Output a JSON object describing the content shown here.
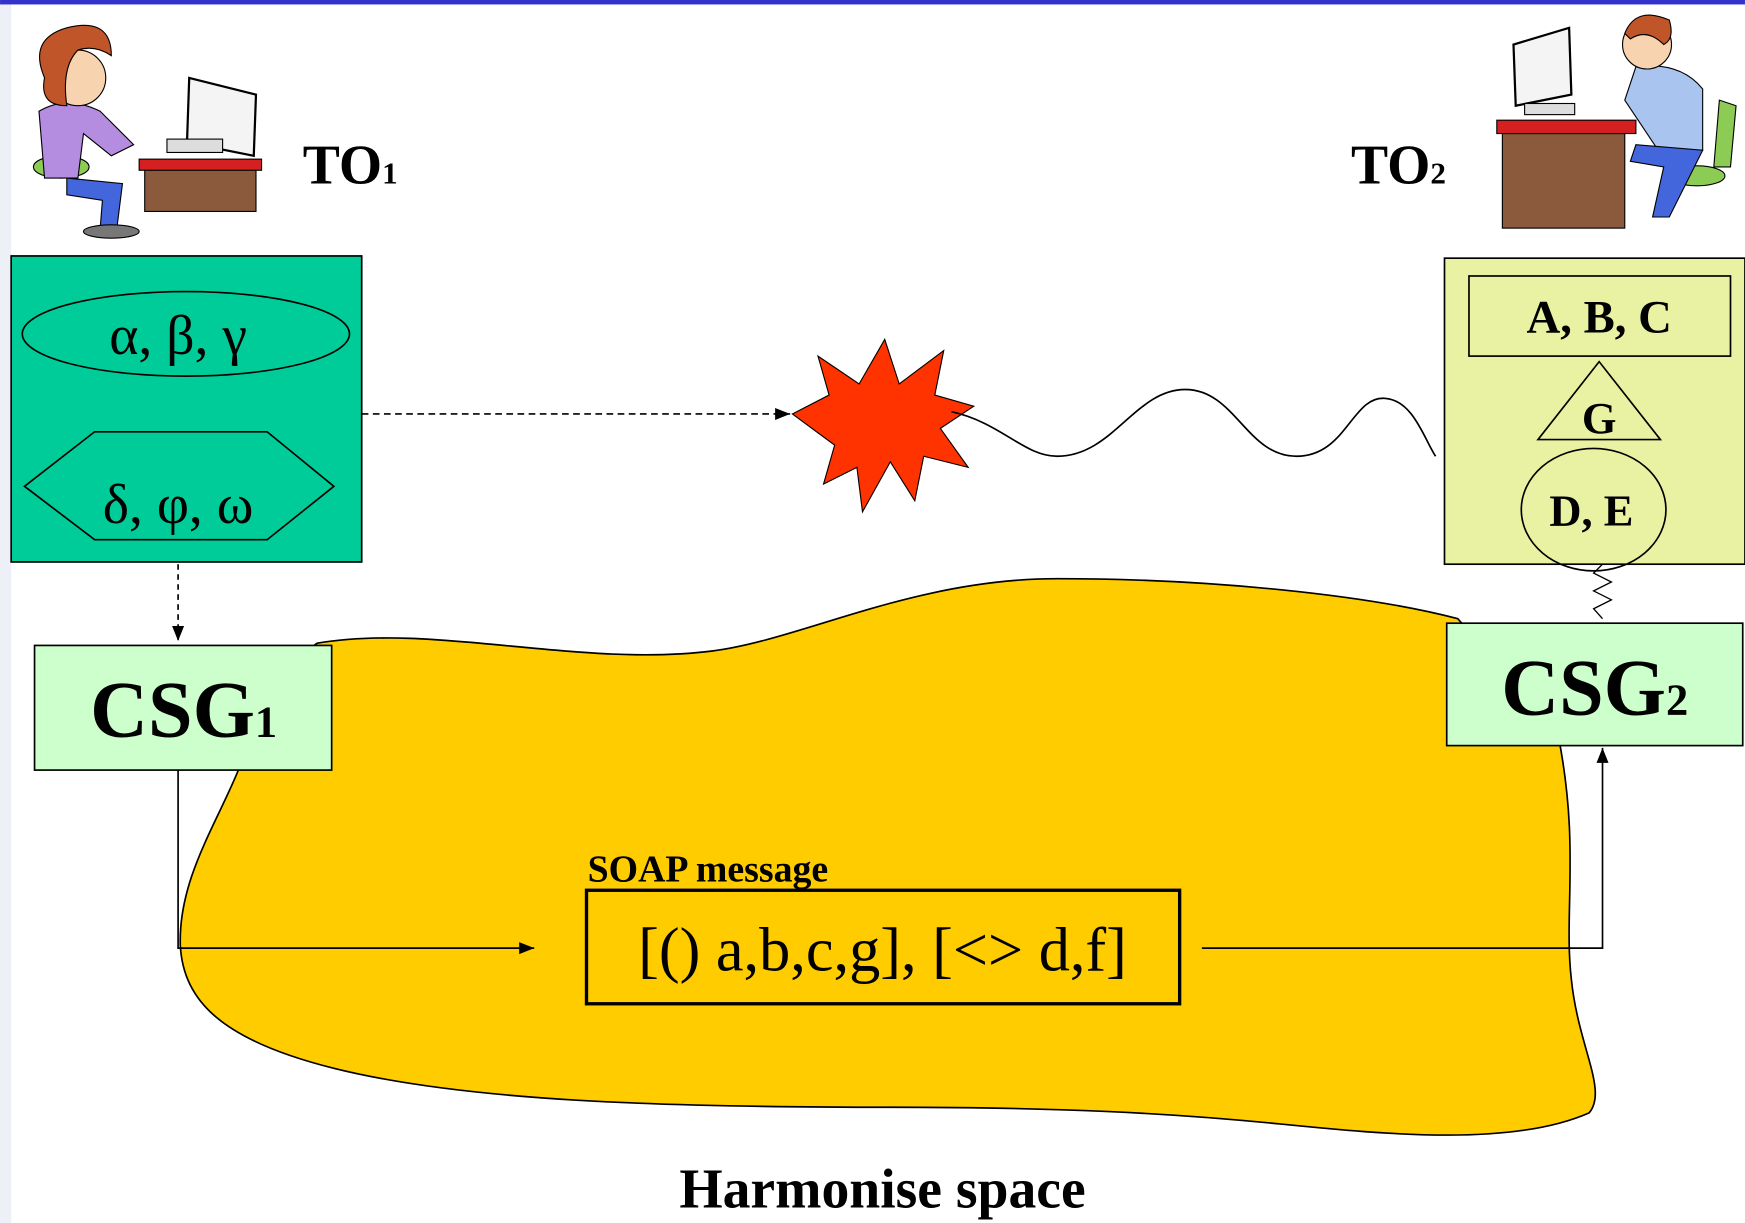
{
  "to1": {
    "label": "TO",
    "sub": "1"
  },
  "to2": {
    "label": "TO",
    "sub": "2"
  },
  "to1_box": {
    "top": "α, β, γ",
    "bottom": "δ, φ, ω"
  },
  "to2_box": {
    "top": "A, B, C",
    "middle": "G",
    "bottom": "D, E"
  },
  "csg1": {
    "label": "CSG",
    "sub": "1"
  },
  "csg2": {
    "label": "CSG",
    "sub": "2"
  },
  "soap": {
    "title": "SOAP message",
    "content": "[() a,b,c,g], [<> d,f]"
  },
  "space": {
    "label": "Harmonise space"
  }
}
